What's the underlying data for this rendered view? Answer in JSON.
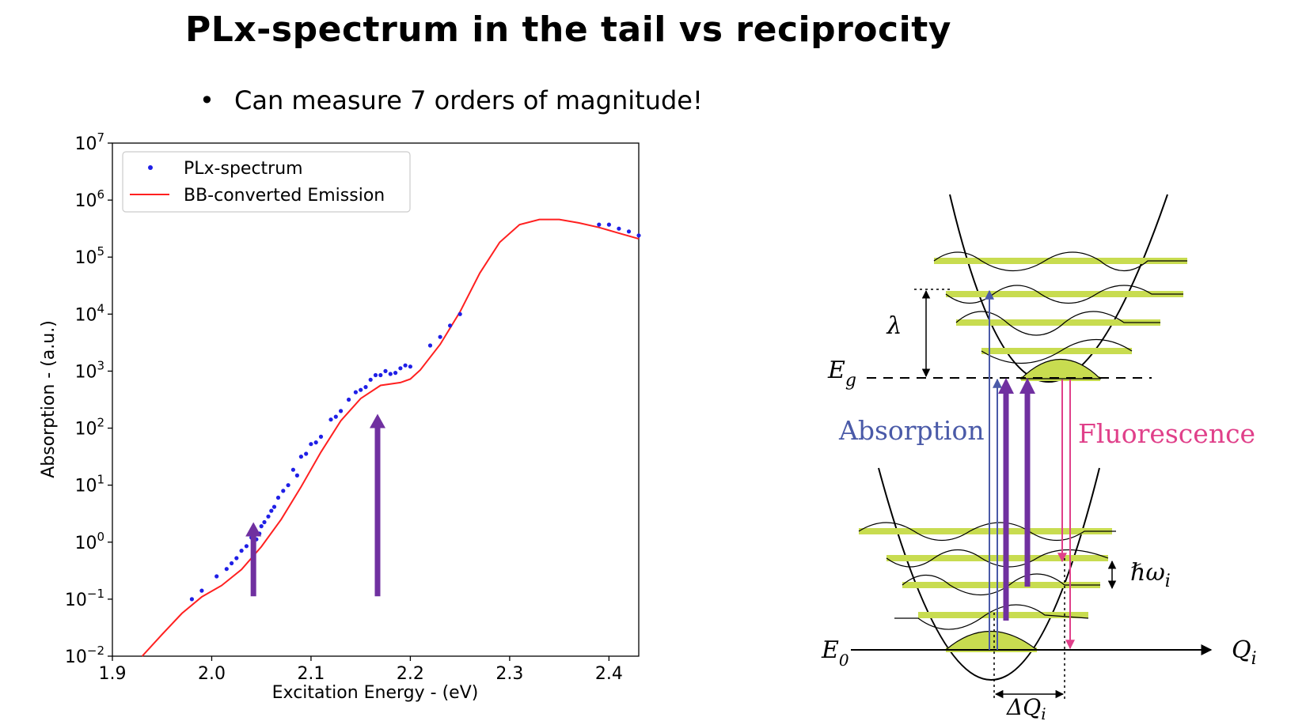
{
  "slide": {
    "title": "PLx-spectrum in the tail vs reciprocity",
    "bullet": "Can measure 7 orders of magnitude!"
  },
  "colors": {
    "points": "#1f1fe6",
    "curve": "#ff2020",
    "arrow": "#7030a0",
    "absorption": "#4a5aa8",
    "fluorescence": "#e0408a",
    "levels": "#c8dc50"
  },
  "chart_data": {
    "type": "scatter",
    "xlabel": "Excitation Energy - (eV)",
    "ylabel": "Absorption - (a.u.)",
    "xlim": [
      1.9,
      2.43
    ],
    "ylim": [
      -2,
      7
    ],
    "yscale": "log",
    "xticks": [
      "1.9",
      "2.0",
      "2.1",
      "2.2",
      "2.3",
      "2.4"
    ],
    "yticks": [
      {
        "base": "10",
        "exp": "−2"
      },
      {
        "base": "10",
        "exp": "−1"
      },
      {
        "base": "10",
        "exp": "0"
      },
      {
        "base": "10",
        "exp": "1"
      },
      {
        "base": "10",
        "exp": "2"
      },
      {
        "base": "10",
        "exp": "3"
      },
      {
        "base": "10",
        "exp": "4"
      },
      {
        "base": "10",
        "exp": "5"
      },
      {
        "base": "10",
        "exp": "6"
      },
      {
        "base": "10",
        "exp": "7"
      }
    ],
    "legend": {
      "position": "top-left",
      "entries": [
        "PLx-spectrum",
        "BB-converted Emission"
      ]
    },
    "series": [
      {
        "name": "PLx-spectrum",
        "kind": "points",
        "x": [
          1.98,
          1.99,
          2.005,
          2.015,
          2.02,
          2.025,
          2.03,
          2.035,
          2.04,
          2.045,
          2.048,
          2.05,
          2.053,
          2.057,
          2.06,
          2.063,
          2.067,
          2.072,
          2.077,
          2.082,
          2.086,
          2.09,
          2.095,
          2.1,
          2.105,
          2.11,
          2.12,
          2.125,
          2.13,
          2.138,
          2.145,
          2.15,
          2.155,
          2.16,
          2.165,
          2.17,
          2.175,
          2.18,
          2.185,
          2.19,
          2.195,
          2.2,
          2.22,
          2.23,
          2.24,
          2.25,
          2.39,
          2.4,
          2.41,
          2.42,
          2.43
        ],
        "log10_y": [
          -1,
          -0.85,
          -0.6,
          -0.47,
          -0.37,
          -0.28,
          -0.15,
          -0.07,
          0.08,
          0.05,
          0.15,
          0.28,
          0.35,
          0.45,
          0.55,
          0.62,
          0.78,
          0.9,
          1.0,
          1.27,
          1.17,
          1.5,
          1.55,
          1.72,
          1.75,
          1.85,
          2.15,
          2.2,
          2.3,
          2.5,
          2.63,
          2.67,
          2.72,
          2.85,
          2.93,
          2.93,
          3.0,
          2.95,
          2.97,
          3.05,
          3.1,
          3.08,
          3.45,
          3.6,
          3.8,
          4.0,
          5.57,
          5.57,
          5.5,
          5.45,
          5.38
        ]
      },
      {
        "name": "BB-converted Emission",
        "kind": "line",
        "x": [
          1.93,
          1.95,
          1.97,
          1.99,
          2.01,
          2.03,
          2.05,
          2.07,
          2.09,
          2.11,
          2.13,
          2.15,
          2.17,
          2.19,
          2.2,
          2.21,
          2.23,
          2.25,
          2.27,
          2.29,
          2.31,
          2.33,
          2.35,
          2.37,
          2.39,
          2.41,
          2.43
        ],
        "log10_y": [
          -2,
          -1.62,
          -1.25,
          -0.96,
          -0.76,
          -0.48,
          -0.08,
          0.4,
          0.97,
          1.58,
          2.13,
          2.52,
          2.75,
          2.8,
          2.86,
          3.02,
          3.47,
          4.04,
          4.72,
          5.26,
          5.57,
          5.66,
          5.66,
          5.6,
          5.52,
          5.42,
          5.32
        ]
      }
    ],
    "arrows": [
      {
        "x": 2.042,
        "from_log10_y": -0.95,
        "to_log10_y": 0.35
      },
      {
        "x": 2.167,
        "from_log10_y": -0.95,
        "to_log10_y": 2.25
      }
    ]
  },
  "diagram": {
    "eg": "E",
    "eg_sub": "g",
    "e0": "E",
    "e0_sub": "0",
    "lambda": "λ",
    "absorption": "Absorption",
    "fluorescence": "Fluorescence",
    "hw": "ℏω",
    "hw_sub": "i",
    "qi": "Q",
    "qi_sub": "i",
    "dq": "ΔQ",
    "dq_sub": "i"
  }
}
